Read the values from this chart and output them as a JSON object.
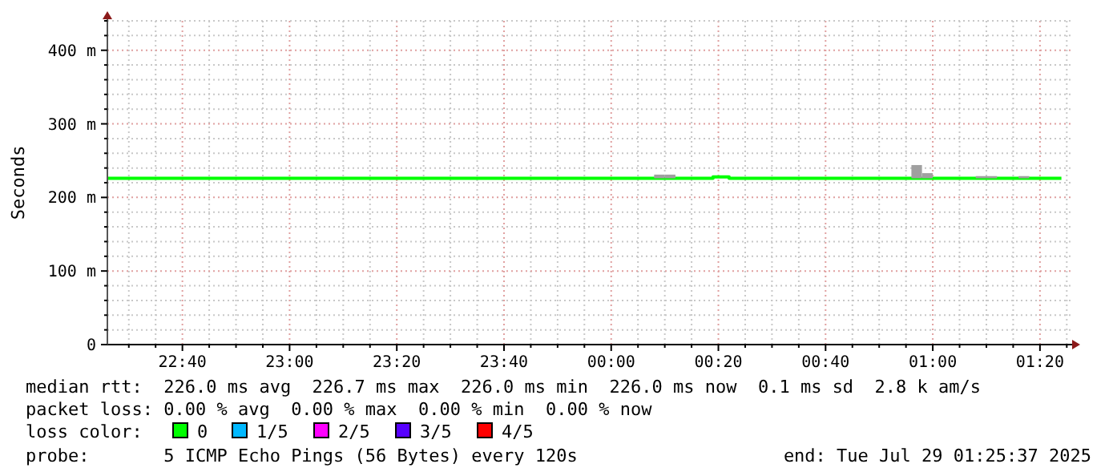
{
  "chart_data": {
    "type": "step",
    "ylabel": "Seconds",
    "legend_title": "loss color:",
    "legend": "bottom",
    "grid": true,
    "x": [
      "2025-07-28T22:26",
      "2025-07-29T00:08",
      "2025-07-29T00:12",
      "2025-07-29T00:19",
      "2025-07-29T00:22",
      "2025-07-29T00:56",
      "2025-07-29T00:58",
      "2025-07-29T01:00",
      "2025-07-29T01:08",
      "2025-07-29T01:12",
      "2025-07-29T01:16",
      "2025-07-29T01:18",
      "2025-07-29T01:24"
    ],
    "series": [
      {
        "name": "0",
        "color": "#00ff00",
        "values": [
          226,
          226,
          226,
          228,
          226,
          226,
          226,
          226,
          226,
          226,
          226,
          226,
          226
        ]
      },
      {
        "type": "bar",
        "color": "#a0a0a0",
        "x": [
          "2025-07-29T00:09",
          "2025-07-29T00:11",
          "2025-07-29T00:57",
          "2025-07-29T00:59",
          "2025-07-29T01:09",
          "2025-07-29T01:11",
          "2025-07-29T01:17"
        ],
        "values": [
          5,
          5,
          18,
          7,
          3,
          3,
          3
        ],
        "base": [
          226,
          226,
          226,
          226,
          226,
          226,
          226
        ]
      },
      {
        "name": "1/5",
        "color": "#00b8ff",
        "values": [
          null,
          null,
          null,
          null,
          null,
          null,
          null,
          null,
          null,
          null,
          null,
          null,
          null
        ]
      },
      {
        "name": "2/5",
        "color": "#ff00ff",
        "values": [
          null,
          null,
          null,
          null,
          null,
          null,
          null,
          null,
          null,
          null,
          null,
          null,
          null
        ]
      },
      {
        "name": "3/5",
        "color": "#5700ff",
        "values": [
          null,
          null,
          null,
          null,
          null,
          null,
          null,
          null,
          null,
          null,
          null,
          null,
          null
        ]
      },
      {
        "name": "4/5",
        "color": "#ff0000",
        "values": [
          null,
          null,
          null,
          null,
          null,
          null,
          null,
          null,
          null,
          null,
          null,
          null,
          null
        ]
      }
    ],
    "xlim": [
      "2025-07-28T22:26",
      "2025-07-29T01:26"
    ],
    "xticks": [
      {
        "value": "2025-07-28T22:30",
        "label": null
      },
      {
        "value": "2025-07-28T22:35",
        "label": null
      },
      {
        "value": "2025-07-28T22:40",
        "label": "22:40"
      },
      {
        "value": "2025-07-28T22:45",
        "label": null
      },
      {
        "value": "2025-07-28T22:50",
        "label": null
      },
      {
        "value": "2025-07-28T22:55",
        "label": null
      },
      {
        "value": "2025-07-28T23:00",
        "label": "23:00"
      },
      {
        "value": "2025-07-28T23:05",
        "label": null
      },
      {
        "value": "2025-07-28T23:10",
        "label": null
      },
      {
        "value": "2025-07-28T23:15",
        "label": null
      },
      {
        "value": "2025-07-28T23:20",
        "label": "23:20"
      },
      {
        "value": "2025-07-28T23:25",
        "label": null
      },
      {
        "value": "2025-07-28T23:30",
        "label": null
      },
      {
        "value": "2025-07-28T23:35",
        "label": null
      },
      {
        "value": "2025-07-28T23:40",
        "label": "23:40"
      },
      {
        "value": "2025-07-28T23:45",
        "label": null
      },
      {
        "value": "2025-07-28T23:50",
        "label": null
      },
      {
        "value": "2025-07-28T23:55",
        "label": null
      },
      {
        "value": "2025-07-29T00:00",
        "label": "00:00"
      },
      {
        "value": "2025-07-29T00:05",
        "label": null
      },
      {
        "value": "2025-07-29T00:10",
        "label": null
      },
      {
        "value": "2025-07-29T00:15",
        "label": null
      },
      {
        "value": "2025-07-29T00:20",
        "label": "00:20"
      },
      {
        "value": "2025-07-29T00:25",
        "label": null
      },
      {
        "value": "2025-07-29T00:30",
        "label": null
      },
      {
        "value": "2025-07-29T00:35",
        "label": null
      },
      {
        "value": "2025-07-29T00:40",
        "label": "00:40"
      },
      {
        "value": "2025-07-29T00:45",
        "label": null
      },
      {
        "value": "2025-07-29T00:50",
        "label": null
      },
      {
        "value": "2025-07-29T00:55",
        "label": null
      },
      {
        "value": "2025-07-29T01:00",
        "label": "01:00"
      },
      {
        "value": "2025-07-29T01:05",
        "label": null
      },
      {
        "value": "2025-07-29T01:10",
        "label": null
      },
      {
        "value": "2025-07-29T01:15",
        "label": null
      },
      {
        "value": "2025-07-29T01:20",
        "label": "01:20"
      },
      {
        "value": "2025-07-29T01:25",
        "label": null
      }
    ],
    "ylim": [
      0,
      440
    ],
    "yticks": [
      0,
      {
        "value": 20,
        "label": null
      },
      {
        "value": 40,
        "label": null
      },
      {
        "value": 60,
        "label": null
      },
      {
        "value": 80,
        "label": null
      },
      {
        "value": 100,
        "label": "100 m"
      },
      {
        "value": 120,
        "label": null
      },
      {
        "value": 140,
        "label": null
      },
      {
        "value": 160,
        "label": null
      },
      {
        "value": 180,
        "label": null
      },
      {
        "value": 200,
        "label": "200 m"
      },
      {
        "value": 220,
        "label": null
      },
      {
        "value": 240,
        "label": null
      },
      {
        "value": 260,
        "label": null
      },
      {
        "value": 280,
        "label": null
      },
      {
        "value": 300,
        "label": "300 m"
      },
      {
        "value": 320,
        "label": null
      },
      {
        "value": 340,
        "label": null
      },
      {
        "value": 360,
        "label": null
      },
      {
        "value": 380,
        "label": null
      },
      {
        "value": 400,
        "label": "400 m"
      },
      {
        "value": 420,
        "label": null
      },
      {
        "value": 440,
        "label": null
      }
    ],
    "annotations": [
      "median rtt:  226.0 ms avg  226.7 ms max  226.0 ms min  226.0 ms now  0.1 ms sd  2.8 k am/s",
      "packet loss: 0.00 % avg  0.00 % max  0.00 % min  0.00 % now",
      "probe:       5 ICMP Echo Pings (56 Bytes) every 120s",
      "end: Tue Jul 29 01:25:37 2025"
    ]
  }
}
